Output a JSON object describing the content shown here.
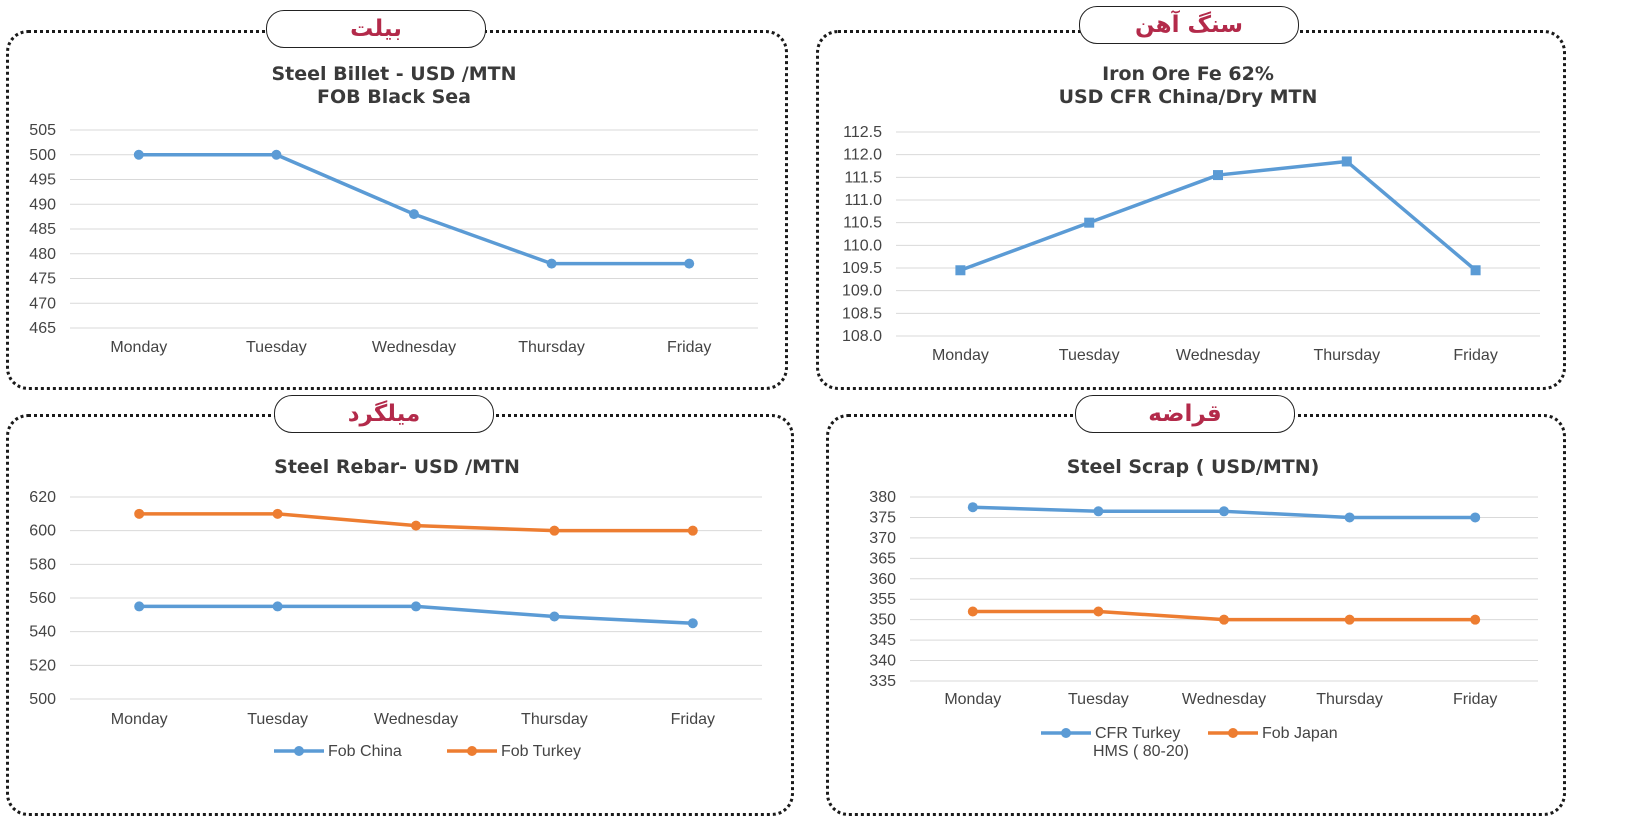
{
  "panels": [
    {
      "tab_label": "بیلت",
      "chart_data": {
        "type": "line",
        "title": [
          "Steel Billet - USD /MTN",
          "FOB Black Sea"
        ],
        "categories": [
          "Monday",
          "Tuesday",
          "Wednesday",
          "Thursday",
          "Friday"
        ],
        "series": [
          {
            "name": "",
            "color": "#5b9bd5",
            "marker": "circle",
            "values": [
              500,
              500,
              488,
              478,
              478
            ]
          }
        ],
        "ylim": [
          465,
          505
        ],
        "ytick_step": 5,
        "ytick_decimals": 0,
        "legend": "none",
        "grid": true
      }
    },
    {
      "tab_label": "سنگ آهن",
      "chart_data": {
        "type": "line",
        "title": [
          "Iron Ore Fe 62%",
          "USD CFR China/Dry MTN"
        ],
        "categories": [
          "Monday",
          "Tuesday",
          "Wednesday",
          "Thursday",
          "Friday"
        ],
        "series": [
          {
            "name": "",
            "color": "#5b9bd5",
            "marker": "square",
            "values": [
              109.45,
              110.5,
              111.55,
              111.85,
              109.45
            ]
          }
        ],
        "ylim": [
          108,
          112.5
        ],
        "ytick_step": 0.5,
        "ytick_decimals": 1,
        "legend": "none",
        "grid": true
      }
    },
    {
      "tab_label": "میلگرد",
      "chart_data": {
        "type": "line",
        "title": [
          "Steel Rebar- USD /MTN"
        ],
        "categories": [
          "Monday",
          "Tuesday",
          "Wednesday",
          "Thursday",
          "Friday"
        ],
        "series": [
          {
            "name": "Fob China",
            "color": "#5b9bd5",
            "marker": "circle",
            "values": [
              555,
              555,
              555,
              549,
              545
            ]
          },
          {
            "name": "Fob Turkey",
            "color": "#ed7d31",
            "marker": "circle",
            "values": [
              610,
              610,
              603,
              600,
              600
            ]
          }
        ],
        "ylim": [
          500,
          620
        ],
        "ytick_step": 20,
        "ytick_decimals": 0,
        "legend": "bottom",
        "grid": true
      }
    },
    {
      "tab_label": "قراضه",
      "chart_data": {
        "type": "line",
        "title": [
          "Steel Scrap ( USD/MTN)"
        ],
        "categories": [
          "Monday",
          "Tuesday",
          "Wednesday",
          "Thursday",
          "Friday"
        ],
        "series": [
          {
            "name": "CFR Turkey HMS ( 80-20)",
            "color": "#5b9bd5",
            "marker": "circle",
            "values": [
              377.5,
              376.5,
              376.5,
              375,
              375
            ]
          },
          {
            "name": "Fob Japan",
            "color": "#ed7d31",
            "marker": "circle",
            "values": [
              352,
              352,
              350,
              350,
              350
            ]
          }
        ],
        "ylim": [
          335,
          380
        ],
        "ytick_step": 5,
        "ytick_decimals": 0,
        "legend": "bottom",
        "grid": true
      }
    }
  ]
}
